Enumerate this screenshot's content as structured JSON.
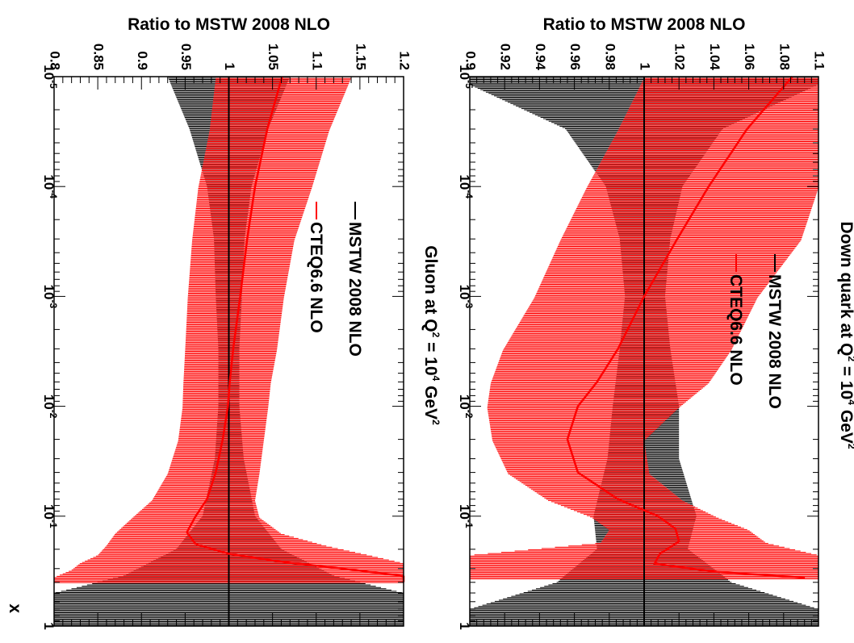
{
  "chart_data": [
    {
      "type": "line",
      "title": "Down quark at Q",
      "title_sup_q": "2",
      "title_mid": " = 10",
      "title_sup_pow": "4",
      "title_unit": " GeV",
      "title_sup_unit": "2",
      "ylabel": "Ratio to MSTW 2008 NLO",
      "xlabel": "x",
      "x_scale": "log",
      "xlim": [
        1e-05,
        1
      ],
      "ylim": [
        0.9,
        1.1
      ],
      "x_ticks": [
        {
          "base": "10",
          "exp": "-5",
          "value": 1e-05
        },
        {
          "base": "10",
          "exp": "-4",
          "value": 0.0001
        },
        {
          "base": "10",
          "exp": "-3",
          "value": 0.001
        },
        {
          "base": "10",
          "exp": "-2",
          "value": 0.01
        },
        {
          "base": "10",
          "exp": "-1",
          "value": 0.1
        },
        {
          "base": "1",
          "exp": "",
          "value": 1
        }
      ],
      "y_ticks": [
        "0.9",
        "0.92",
        "0.94",
        "0.96",
        "0.98",
        "1",
        "1.02",
        "1.04",
        "1.06",
        "1.08",
        "1.1"
      ],
      "y_tick_values": [
        0.9,
        0.92,
        0.94,
        0.96,
        0.98,
        1.0,
        1.02,
        1.04,
        1.06,
        1.08,
        1.1
      ],
      "legend_position": "top-center",
      "series": [
        {
          "name": "MSTW 2008 NLO",
          "color": "#000000",
          "x": [
            1e-05,
            3e-05,
            0.0001,
            0.0003,
            0.001,
            0.003,
            0.01,
            0.03,
            0.1,
            0.2,
            0.4,
            0.7,
            1.0
          ],
          "center": [
            1.0,
            1.0,
            1.0,
            1.0,
            1.0,
            1.0,
            1.0,
            1.0,
            1.0,
            1.0,
            1.0,
            1.0,
            1.0
          ],
          "lower": [
            0.89,
            0.955,
            0.978,
            0.986,
            0.989,
            0.986,
            0.982,
            0.979,
            0.971,
            0.973,
            0.95,
            0.9,
            0.9
          ],
          "upper": [
            1.11,
            1.045,
            1.022,
            1.015,
            1.012,
            1.015,
            1.02,
            1.02,
            1.03,
            1.025,
            1.05,
            1.1,
            1.1
          ]
        },
        {
          "name": "CTEQ6.6 NLO",
          "color": "#ff0000",
          "x": [
            1e-05,
            3e-05,
            0.0001,
            0.0003,
            0.001,
            0.003,
            0.006,
            0.01,
            0.02,
            0.04,
            0.07,
            0.1,
            0.13,
            0.17,
            0.22,
            0.27,
            0.32,
            0.37
          ],
          "center": [
            1.085,
            1.059,
            1.037,
            1.019,
            1.0,
            0.985,
            0.973,
            0.962,
            0.956,
            0.962,
            0.985,
            1.008,
            1.018,
            1.02,
            1.009,
            1.006,
            1.04,
            1.1
          ],
          "lower": [
            1.0,
            0.985,
            0.967,
            0.952,
            0.937,
            0.919,
            0.912,
            0.91,
            0.913,
            0.922,
            0.945,
            0.97,
            0.98,
            0.975,
            0.9,
            0.9,
            0.9,
            0.9
          ],
          "upper": [
            1.1,
            1.1,
            1.1,
            1.09,
            1.065,
            1.05,
            1.037,
            1.02,
            1.0,
            1.003,
            1.022,
            1.042,
            1.06,
            1.07,
            1.1,
            1.1,
            1.1,
            1.1
          ]
        }
      ]
    },
    {
      "type": "line",
      "title": "Gluon at Q",
      "title_sup_q": "2",
      "title_mid": " = 10",
      "title_sup_pow": "4",
      "title_unit": " GeV",
      "title_sup_unit": "2",
      "ylabel": "Ratio to MSTW 2008 NLO",
      "xlabel": "x",
      "x_scale": "log",
      "xlim": [
        1e-05,
        1
      ],
      "ylim": [
        0.8,
        1.2
      ],
      "x_ticks": [
        {
          "base": "10",
          "exp": "-5",
          "value": 1e-05
        },
        {
          "base": "10",
          "exp": "-4",
          "value": 0.0001
        },
        {
          "base": "10",
          "exp": "-3",
          "value": 0.001
        },
        {
          "base": "10",
          "exp": "-2",
          "value": 0.01
        },
        {
          "base": "10",
          "exp": "-1",
          "value": 0.1
        },
        {
          "base": "1",
          "exp": "",
          "value": 1
        }
      ],
      "y_ticks": [
        "0.8",
        "0.85",
        "0.9",
        "0.95",
        "1",
        "1.05",
        "1.1",
        "1.15",
        "1.2"
      ],
      "y_tick_values": [
        0.8,
        0.85,
        0.9,
        0.95,
        1.0,
        1.05,
        1.1,
        1.15,
        1.2
      ],
      "legend_position": "top-center",
      "series": [
        {
          "name": "MSTW 2008 NLO",
          "color": "#000000",
          "x": [
            1e-05,
            3e-05,
            0.0001,
            0.0003,
            0.001,
            0.003,
            0.01,
            0.03,
            0.1,
            0.2,
            0.35,
            0.5,
            0.7,
            1.0
          ],
          "center": [
            1.0,
            1.0,
            1.0,
            1.0,
            1.0,
            1.0,
            1.0,
            1.0,
            1.0,
            1.0,
            1.0,
            1.0,
            1.0,
            1.0
          ],
          "lower": [
            0.93,
            0.955,
            0.975,
            0.983,
            0.985,
            0.988,
            0.988,
            0.984,
            0.97,
            0.94,
            0.88,
            0.8,
            0.8,
            0.8
          ],
          "upper": [
            1.07,
            1.045,
            1.026,
            1.018,
            1.015,
            1.012,
            1.012,
            1.017,
            1.03,
            1.06,
            1.12,
            1.2,
            1.2,
            1.2
          ]
        },
        {
          "name": "CTEQ6.6 NLO",
          "color": "#ff0000",
          "x": [
            1e-05,
            3e-05,
            0.0001,
            0.0003,
            0.001,
            0.003,
            0.006,
            0.01,
            0.02,
            0.04,
            0.07,
            0.1,
            0.14,
            0.18,
            0.22,
            0.26,
            0.3,
            0.35,
            0.4
          ],
          "center": [
            1.061,
            1.044,
            1.03,
            1.021,
            1.013,
            1.005,
            1.001,
            0.999,
            0.993,
            0.985,
            0.975,
            0.962,
            0.952,
            0.962,
            1.0,
            1.06,
            1.13,
            1.2,
            1.2
          ],
          "lower": [
            0.985,
            0.978,
            0.965,
            0.958,
            0.953,
            0.95,
            0.948,
            0.947,
            0.942,
            0.93,
            0.912,
            0.89,
            0.87,
            0.86,
            0.85,
            0.83,
            0.82,
            0.8,
            0.8
          ],
          "upper": [
            1.14,
            1.115,
            1.095,
            1.075,
            1.063,
            1.055,
            1.048,
            1.045,
            1.04,
            1.035,
            1.03,
            1.035,
            1.06,
            1.11,
            1.16,
            1.2,
            1.2,
            1.2,
            1.2
          ]
        }
      ]
    }
  ]
}
